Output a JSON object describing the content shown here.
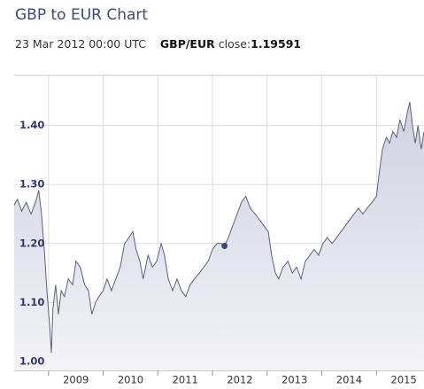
{
  "chart_data": {
    "type": "line",
    "title": "GBP to EUR Chart",
    "tooltip": {
      "date": "23 Mar 2012 00:00 UTC",
      "pair": "GBP/EUR",
      "label": "close:",
      "value": 1.19591
    },
    "x": [
      2008.37,
      2008.43,
      2008.51,
      2008.59,
      2008.68,
      2008.76,
      2008.82,
      2008.87,
      2008.92,
      2008.97,
      2009.02,
      2009.05,
      2009.08,
      2009.13,
      2009.18,
      2009.23,
      2009.29,
      2009.36,
      2009.44,
      2009.5,
      2009.58,
      2009.66,
      2009.73,
      2009.79,
      2009.86,
      2009.92,
      2010.0,
      2010.07,
      2010.15,
      2010.23,
      2010.31,
      2010.39,
      2010.47,
      2010.54,
      2010.6,
      2010.67,
      2010.73,
      2010.82,
      2010.9,
      2010.98,
      2011.06,
      2011.12,
      2011.19,
      2011.27,
      2011.35,
      2011.43,
      2011.51,
      2011.59,
      2011.67,
      2011.76,
      2011.84,
      2011.92,
      2012.0,
      2012.08,
      2012.16,
      2012.22,
      2012.29,
      2012.37,
      2012.45,
      2012.53,
      2012.61,
      2012.69,
      2012.78,
      2012.86,
      2012.94,
      2013.02,
      2013.08,
      2013.15,
      2013.21,
      2013.29,
      2013.38,
      2013.46,
      2013.54,
      2013.62,
      2013.7,
      2013.78,
      2013.86,
      2013.94,
      2014.02,
      2014.1,
      2014.19,
      2014.27,
      2014.35,
      2014.43,
      2014.51,
      2014.59,
      2014.67,
      2014.75,
      2014.83,
      2014.92,
      2015.0,
      2015.05,
      2015.11,
      2015.18,
      2015.24,
      2015.3,
      2015.37,
      2015.43,
      2015.5,
      2015.56,
      2015.61,
      2015.66,
      2015.71,
      2015.76,
      2015.82,
      2015.87
    ],
    "series": [
      {
        "color": "#5d6079",
        "marker_index": 55,
        "values": [
          1.265,
          1.275,
          1.255,
          1.27,
          1.25,
          1.27,
          1.29,
          1.25,
          1.19,
          1.12,
          1.06,
          1.015,
          1.09,
          1.13,
          1.08,
          1.12,
          1.11,
          1.14,
          1.13,
          1.17,
          1.16,
          1.13,
          1.12,
          1.08,
          1.1,
          1.11,
          1.12,
          1.14,
          1.12,
          1.14,
          1.16,
          1.2,
          1.21,
          1.22,
          1.19,
          1.17,
          1.14,
          1.18,
          1.16,
          1.17,
          1.2,
          1.18,
          1.14,
          1.12,
          1.14,
          1.12,
          1.11,
          1.13,
          1.14,
          1.15,
          1.16,
          1.17,
          1.19,
          1.2,
          1.2,
          1.19591,
          1.21,
          1.23,
          1.25,
          1.27,
          1.28,
          1.26,
          1.25,
          1.24,
          1.23,
          1.22,
          1.18,
          1.15,
          1.14,
          1.16,
          1.17,
          1.15,
          1.16,
          1.14,
          1.17,
          1.18,
          1.19,
          1.18,
          1.2,
          1.21,
          1.2,
          1.21,
          1.22,
          1.23,
          1.24,
          1.25,
          1.26,
          1.25,
          1.26,
          1.27,
          1.28,
          1.32,
          1.36,
          1.38,
          1.37,
          1.39,
          1.38,
          1.41,
          1.39,
          1.42,
          1.44,
          1.4,
          1.37,
          1.4,
          1.36,
          1.39
        ]
      }
    ],
    "xlim": [
      2008.37,
      2015.87
    ],
    "xticks": [
      2009,
      2010,
      2011,
      2012,
      2013,
      2014,
      2015
    ],
    "ylim": [
      0.985,
      1.485
    ],
    "yticks": [
      {
        "value": 1.0,
        "label": "1.00"
      },
      {
        "value": 1.1,
        "label": "1.10"
      },
      {
        "value": 1.2,
        "label": "1.20"
      },
      {
        "value": 1.3,
        "label": "1.30"
      },
      {
        "value": 1.4,
        "label": "1.40"
      }
    ],
    "grid": true
  }
}
